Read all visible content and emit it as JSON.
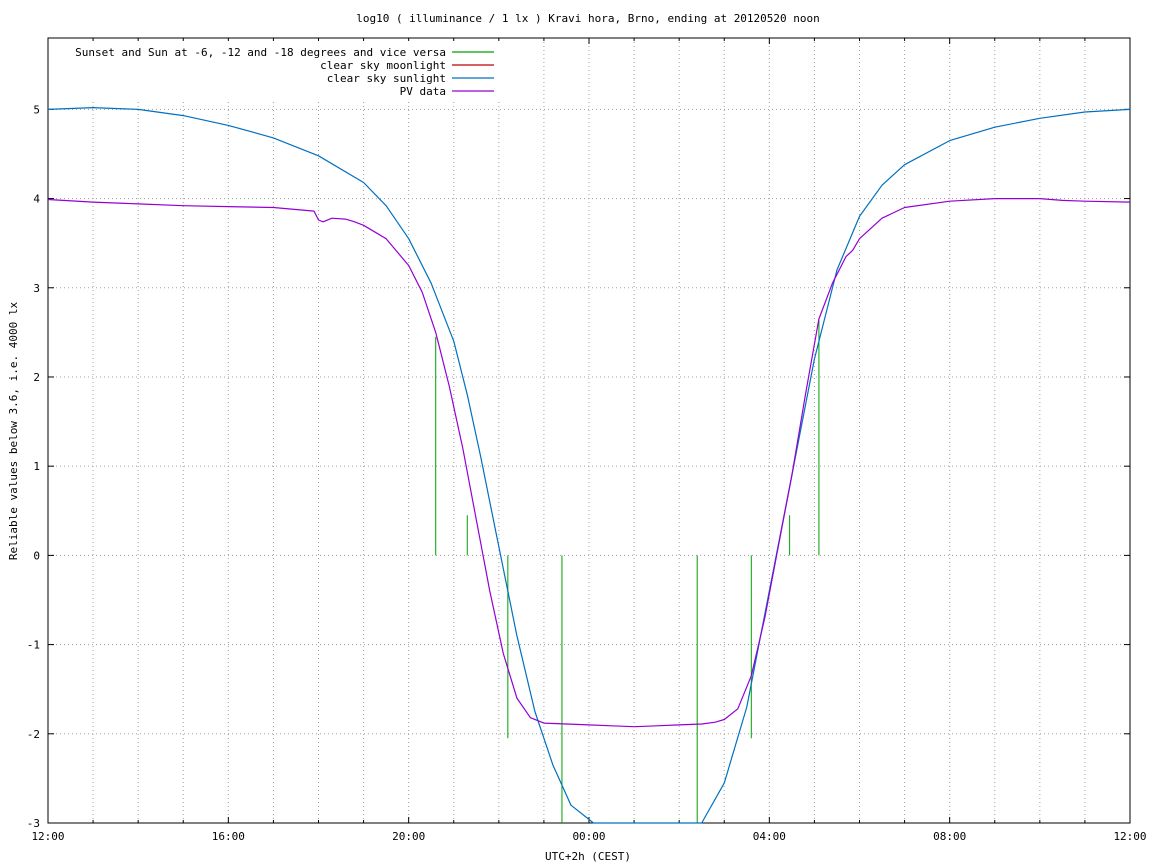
{
  "chart_data": {
    "type": "line",
    "title": "log10 ( illuminance / 1 lx ) Kravi hora, Brno, ending at 20120520 noon",
    "xlabel": "UTC+2h (CEST)",
    "ylabel": "Reliable values below 3.6, i.e. 4000 lx",
    "xlim_hours": [
      0,
      24
    ],
    "ylim": [
      -3,
      5.8
    ],
    "xticks": [
      {
        "h": 0,
        "label": "12:00"
      },
      {
        "h": 4,
        "label": "16:00"
      },
      {
        "h": 8,
        "label": "20:00"
      },
      {
        "h": 12,
        "label": "00:00"
      },
      {
        "h": 16,
        "label": "04:00"
      },
      {
        "h": 20,
        "label": "08:00"
      },
      {
        "h": 24,
        "label": "12:00"
      }
    ],
    "yticks": [
      -3,
      -2,
      -1,
      0,
      1,
      2,
      3,
      4,
      5
    ],
    "grid": true,
    "legend_position": "top-left",
    "legend": [
      {
        "label": "Sunset and Sun at -6, -12 and -18 degrees and vice versa",
        "color": "#00a000"
      },
      {
        "label": "clear sky moonlight",
        "color": "#c00000"
      },
      {
        "label": "clear sky sunlight",
        "color": "#0070c0"
      },
      {
        "label": "PV data",
        "color": "#9400d3"
      }
    ],
    "series": [
      {
        "name": "clear sky sunlight",
        "color": "#0070c0",
        "x": [
          0,
          1,
          2,
          3,
          4,
          5,
          6,
          7,
          7.5,
          8,
          8.5,
          9,
          9.3,
          9.6,
          10,
          10.4,
          10.8,
          11.2,
          11.6,
          12.1,
          14.5,
          15,
          15.5,
          16,
          16.5,
          17,
          17.5,
          18,
          18.5,
          19,
          20,
          21,
          22,
          23,
          24
        ],
        "y": [
          5.0,
          5.02,
          5.0,
          4.93,
          4.82,
          4.68,
          4.48,
          4.18,
          3.92,
          3.55,
          3.05,
          2.4,
          1.8,
          1.1,
          0.1,
          -0.9,
          -1.75,
          -2.35,
          -2.8,
          -3.05,
          -3.05,
          -2.55,
          -1.7,
          -0.4,
          0.9,
          2.2,
          3.2,
          3.8,
          4.15,
          4.38,
          4.65,
          4.8,
          4.9,
          4.97,
          5.0
        ]
      },
      {
        "name": "PV data",
        "color": "#9400d3",
        "x": [
          0,
          1,
          2,
          3,
          4,
          5,
          5.9,
          6,
          6.1,
          6.3,
          6.6,
          6.8,
          7,
          7.5,
          8,
          8.3,
          8.6,
          8.9,
          9.2,
          9.5,
          9.8,
          10.1,
          10.4,
          10.7,
          11,
          11.5,
          12,
          12.5,
          13,
          13.5,
          14,
          14.5,
          14.8,
          15,
          15.3,
          15.6,
          15.9,
          16.2,
          16.5,
          16.8,
          17.1,
          17.4,
          17.7,
          17.85,
          18,
          18.5,
          19,
          20,
          21,
          22,
          22.5,
          23,
          24
        ],
        "y": [
          3.99,
          3.96,
          3.94,
          3.92,
          3.91,
          3.9,
          3.86,
          3.76,
          3.74,
          3.78,
          3.77,
          3.74,
          3.7,
          3.55,
          3.25,
          2.95,
          2.5,
          1.9,
          1.2,
          0.4,
          -0.4,
          -1.1,
          -1.6,
          -1.82,
          -1.88,
          -1.89,
          -1.9,
          -1.91,
          -1.92,
          -1.91,
          -1.9,
          -1.89,
          -1.87,
          -1.84,
          -1.72,
          -1.35,
          -0.7,
          0.1,
          0.9,
          1.8,
          2.65,
          3.05,
          3.35,
          3.42,
          3.55,
          3.78,
          3.9,
          3.97,
          4.0,
          4.0,
          3.98,
          3.97,
          3.96
        ]
      }
    ],
    "sun_markers": [
      {
        "x": 8.6,
        "y": 2.45
      },
      {
        "x": 9.3,
        "y": 0.45
      },
      {
        "x": 10.2,
        "y": -2.05
      },
      {
        "x": 11.4,
        "y": -3.0
      },
      {
        "x": 14.4,
        "y": -3.0
      },
      {
        "x": 15.6,
        "y": -2.05
      },
      {
        "x": 16.45,
        "y": 0.45
      },
      {
        "x": 17.1,
        "y": 2.65
      }
    ]
  }
}
